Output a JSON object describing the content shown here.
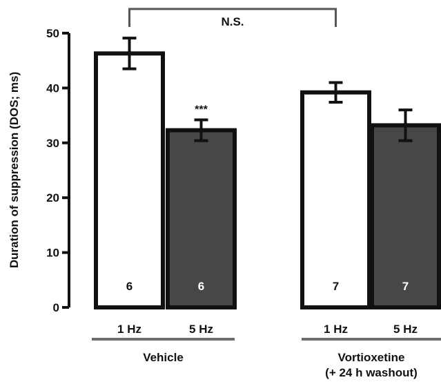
{
  "chart_data": {
    "type": "bar",
    "ylabel": "Duration of suppression (DOS; ms)",
    "ylim": [
      0,
      50
    ],
    "yticks": [
      0,
      10,
      20,
      30,
      40,
      50
    ],
    "grid": false,
    "groups": [
      {
        "label": "Vehicle"
      },
      {
        "label_lines": [
          "Vortioxetine",
          "(+ 24 h washout)"
        ]
      }
    ],
    "bars": [
      {
        "group": 0,
        "category": "1 Hz",
        "value": 46.3,
        "error": 2.8,
        "n": "6",
        "fill": "white",
        "annotation": ""
      },
      {
        "group": 0,
        "category": "5 Hz",
        "value": 32.3,
        "error": 1.9,
        "n": "6",
        "fill": "dark",
        "annotation": "***"
      },
      {
        "group": 1,
        "category": "1 Hz",
        "value": 39.2,
        "error": 1.8,
        "n": "7",
        "fill": "white",
        "annotation": ""
      },
      {
        "group": 1,
        "category": "5 Hz",
        "value": 33.2,
        "error": 2.8,
        "n": "7",
        "fill": "dark",
        "annotation": ""
      }
    ],
    "comparison": {
      "from_bar": 0,
      "to_bar": 2,
      "label": "N.S."
    }
  },
  "colors": {
    "outline": "#111111",
    "light_bar": "#ffffff",
    "dark_bar": "#474747",
    "n_label_on_light": "#111111",
    "n_label_on_dark": "#ffffff",
    "group_line": "#6e6e6e",
    "bracket": "#555555"
  }
}
